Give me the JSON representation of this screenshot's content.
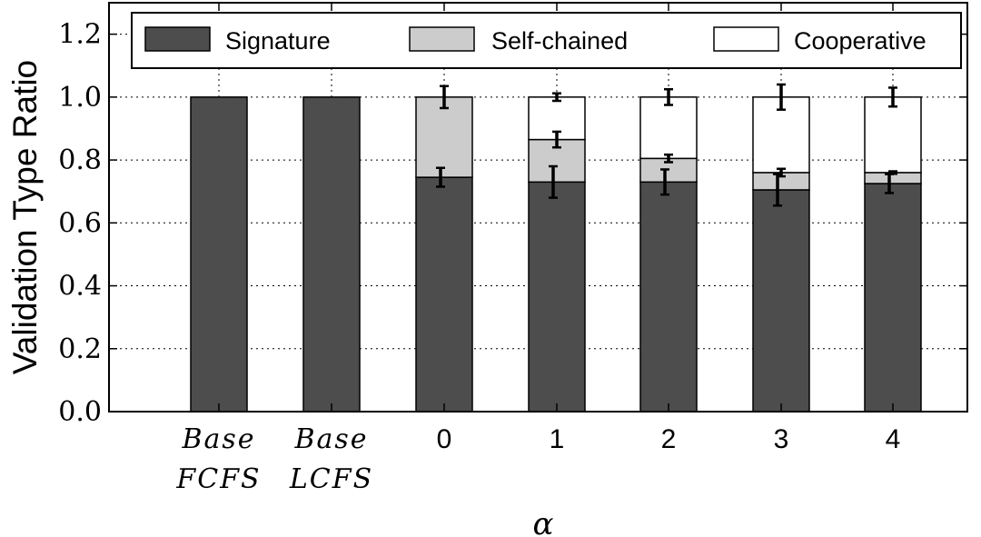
{
  "chart_data": {
    "type": "bar",
    "stacked": true,
    "categories": [
      {
        "line1": "Base",
        "line2": "FCFS",
        "italic": true
      },
      {
        "line1": "Base",
        "line2": "LCFS",
        "italic": true
      },
      {
        "line1": "0",
        "line2": "",
        "italic": false
      },
      {
        "line1": "1",
        "line2": "",
        "italic": false
      },
      {
        "line1": "2",
        "line2": "",
        "italic": false
      },
      {
        "line1": "3",
        "line2": "",
        "italic": false
      },
      {
        "line1": "4",
        "line2": "",
        "italic": false
      }
    ],
    "series": [
      {
        "name": "Signature",
        "color": "#4d4d4d",
        "values": [
          1.0,
          1.0,
          0.745,
          0.73,
          0.73,
          0.705,
          0.725
        ],
        "err": [
          null,
          null,
          0.03,
          0.05,
          0.04,
          0.05,
          0.03
        ]
      },
      {
        "name": "Self-chained",
        "color": "#cccccc",
        "values": [
          0.0,
          0.0,
          0.255,
          0.135,
          0.075,
          0.055,
          0.035
        ],
        "err": [
          null,
          null,
          0.035,
          0.025,
          0.012,
          0.012,
          0.004
        ]
      },
      {
        "name": "Cooperative",
        "color": "#ffffff",
        "values": [
          0.0,
          0.0,
          0.0,
          0.135,
          0.195,
          0.24,
          0.24
        ],
        "err": [
          null,
          null,
          null,
          0.012,
          0.025,
          0.04,
          0.03
        ]
      }
    ],
    "xlabel": "α",
    "ylabel": "Validation Type Ratio",
    "ylim": [
      0.0,
      1.3
    ],
    "yticks": [
      "0.0",
      "0.2",
      "0.4",
      "0.6",
      "0.8",
      "1.0",
      "1.2"
    ],
    "grid": true,
    "legend_position": "top"
  }
}
